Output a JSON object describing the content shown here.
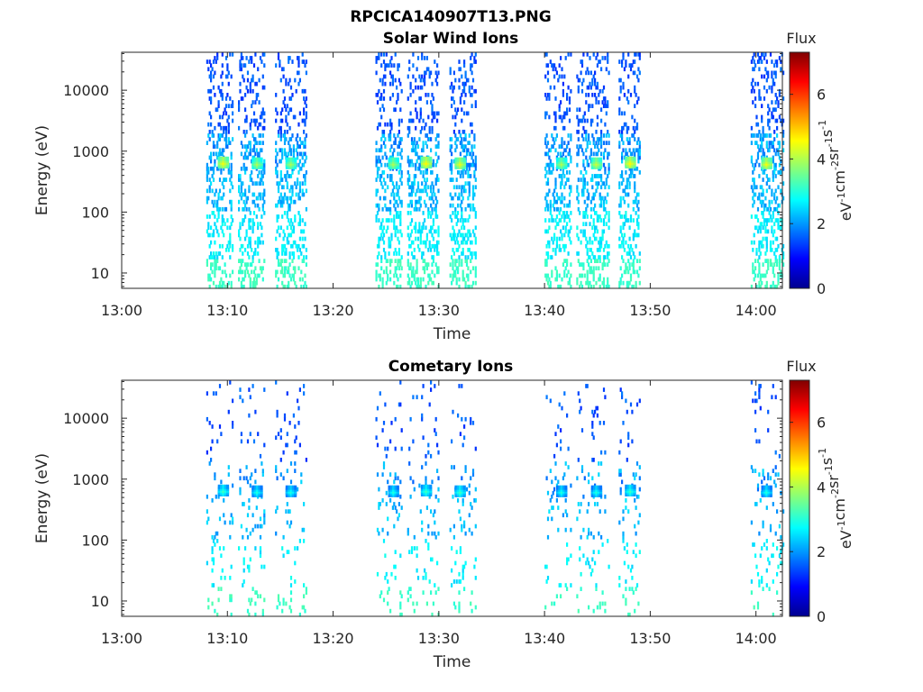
{
  "figure": {
    "title": "RPCICA140907T13.PNG"
  },
  "colormap": [
    "#00008f",
    "#0000ff",
    "#0080ff",
    "#00ffff",
    "#80ff80",
    "#ffff00",
    "#ff8000",
    "#ff0000",
    "#800000"
  ],
  "chart_data": [
    {
      "type": "heatmap",
      "title": "Solar Wind Ions",
      "xlabel": "Time",
      "ylabel": "Energy (eV)",
      "x_ticks": [
        "13:00",
        "13:10",
        "13:20",
        "13:30",
        "13:40",
        "13:50",
        "14:00"
      ],
      "x_range_minutes": [
        0,
        62.5
      ],
      "y_scale": "log",
      "y_ticks": [
        10,
        100,
        1000,
        10000
      ],
      "y_tick_labels": [
        "10",
        "100",
        "1000",
        "10000"
      ],
      "y_range": [
        5.6,
        42000
      ],
      "colorbar": {
        "title": "Flux",
        "unit": "eV⁻¹cm⁻²sr⁻¹s⁻¹",
        "ticks": [
          "0",
          "2",
          "4",
          "6"
        ],
        "range": [
          0,
          7.3
        ]
      },
      "active_intervals_minutes": [
        [
          8,
          10.5
        ],
        [
          11,
          13.5
        ],
        [
          14.5,
          17.5
        ],
        [
          24,
          26.5
        ],
        [
          27,
          30
        ],
        [
          31,
          33.5
        ],
        [
          40,
          42.5
        ],
        [
          43,
          46
        ],
        [
          47,
          49
        ],
        [
          59.5,
          62.5
        ]
      ],
      "peaks": [
        {
          "time": 9.5,
          "energy": 640,
          "flux": 4.5
        },
        {
          "time": 12.7,
          "energy": 620,
          "flux": 4.0
        },
        {
          "time": 15.9,
          "energy": 620,
          "flux": 4.0
        },
        {
          "time": 25.6,
          "energy": 620,
          "flux": 4.0
        },
        {
          "time": 28.7,
          "energy": 640,
          "flux": 4.6
        },
        {
          "time": 31.9,
          "energy": 620,
          "flux": 4.4
        },
        {
          "time": 41.5,
          "energy": 620,
          "flux": 4.0
        },
        {
          "time": 44.8,
          "energy": 620,
          "flux": 4.2
        },
        {
          "time": 48.0,
          "energy": 640,
          "flux": 4.6
        },
        {
          "time": 60.9,
          "energy": 620,
          "flux": 4.5
        }
      ],
      "density": 0.5
    },
    {
      "type": "heatmap",
      "title": "Cometary Ions",
      "xlabel": "Time",
      "ylabel": "Energy (eV)",
      "x_ticks": [
        "13:00",
        "13:10",
        "13:20",
        "13:30",
        "13:40",
        "13:50",
        "14:00"
      ],
      "x_range_minutes": [
        0,
        62.5
      ],
      "y_scale": "log",
      "y_ticks": [
        10,
        100,
        1000,
        10000
      ],
      "y_tick_labels": [
        "10",
        "100",
        "1000",
        "10000"
      ],
      "y_range": [
        5.6,
        42000
      ],
      "colorbar": {
        "title": "Flux",
        "unit": "eV⁻¹cm⁻²sr⁻¹s⁻¹",
        "ticks": [
          "0",
          "2",
          "4",
          "6"
        ],
        "range": [
          0,
          7.3
        ]
      },
      "active_intervals_minutes": [
        [
          8,
          10.5
        ],
        [
          11,
          13.5
        ],
        [
          14.5,
          17.5
        ],
        [
          24,
          26.5
        ],
        [
          27,
          30
        ],
        [
          31,
          33.5
        ],
        [
          40,
          42.5
        ],
        [
          43,
          46
        ],
        [
          47,
          49
        ],
        [
          59.5,
          62.5
        ]
      ],
      "peaks": [
        {
          "time": 9.5,
          "energy": 640,
          "flux": 3.2
        },
        {
          "time": 12.7,
          "energy": 620,
          "flux": 3.0
        },
        {
          "time": 15.9,
          "energy": 620,
          "flux": 3.0
        },
        {
          "time": 25.6,
          "energy": 620,
          "flux": 3.0
        },
        {
          "time": 28.7,
          "energy": 640,
          "flux": 3.2
        },
        {
          "time": 31.9,
          "energy": 620,
          "flux": 3.2
        },
        {
          "time": 41.5,
          "energy": 620,
          "flux": 3.0
        },
        {
          "time": 44.8,
          "energy": 620,
          "flux": 3.0
        },
        {
          "time": 48.0,
          "energy": 640,
          "flux": 3.2
        },
        {
          "time": 60.9,
          "energy": 620,
          "flux": 3.0
        }
      ],
      "density": 0.12
    }
  ]
}
